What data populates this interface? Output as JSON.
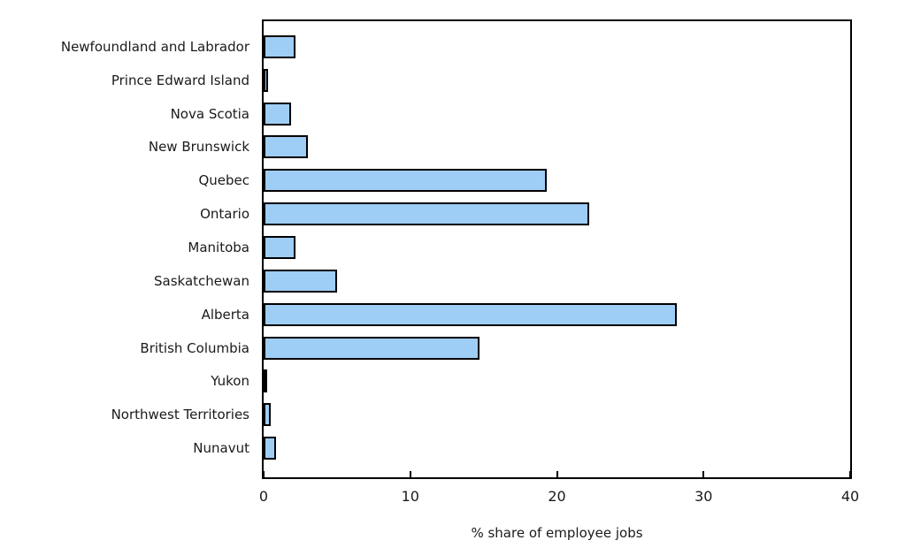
{
  "chart_data": {
    "type": "bar",
    "orientation": "horizontal",
    "title": "",
    "xlabel": "% share of employee jobs",
    "ylabel": "",
    "xlim": [
      0,
      40
    ],
    "xticks": [
      0,
      10,
      20,
      30,
      40
    ],
    "grid": false,
    "categories": [
      "Newfoundland and Labrador",
      "Prince Edward Island",
      "Nova Scotia",
      "New Brunswick",
      "Quebec",
      "Ontario",
      "Manitoba",
      "Saskatchewan",
      "Alberta",
      "British Columbia",
      "Yukon",
      "Northwest Territories",
      "Nunavut"
    ],
    "values": [
      2.2,
      0.3,
      1.9,
      3.0,
      19.3,
      22.2,
      2.2,
      5.0,
      28.2,
      14.7,
      0.25,
      0.5,
      0.85
    ],
    "bar_fill_color": "#9ECDF6",
    "bar_border_color": "#000000",
    "frame_color": "#000000",
    "text_color": "#1a1a1a"
  }
}
